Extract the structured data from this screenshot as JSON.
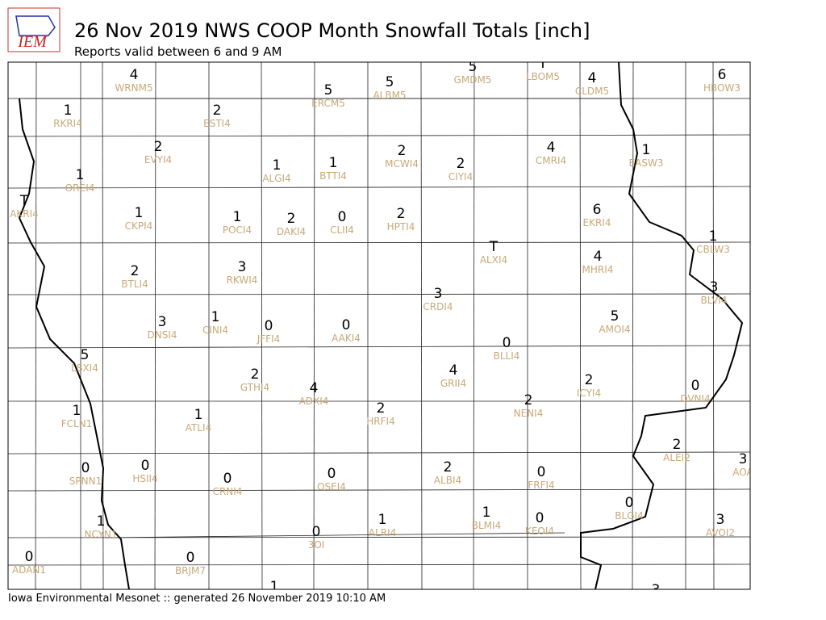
{
  "header": {
    "logo_text": "IEM",
    "title": "26 Nov 2019 NWS COOP Month Snowfall Totals [inch]",
    "subtitle": "Reports valid between 6 and 9 AM"
  },
  "footer": "Iowa Environmental Mesonet :: generated 26 November 2019 10:10 AM",
  "stations": [
    {
      "value": 4,
      "id": "WRNM5"
    },
    {
      "value": 5,
      "id": "ERCM5"
    },
    {
      "value": 5,
      "id": "ALBM5"
    },
    {
      "value": 5,
      "id": "GMDM5"
    },
    {
      "value": "T",
      "id": "LBOM5"
    },
    {
      "value": 4,
      "id": "CLDM5"
    },
    {
      "value": 6,
      "id": "HBOW3"
    },
    {
      "value": 1,
      "id": "RKRI4"
    },
    {
      "value": 2,
      "id": "ESTI4"
    },
    {
      "value": 2,
      "id": "EVYI4"
    },
    {
      "value": 1,
      "id": "ALGI4"
    },
    {
      "value": 1,
      "id": "BTTI4"
    },
    {
      "value": 2,
      "id": "MCWI4"
    },
    {
      "value": 2,
      "id": "CIYI4"
    },
    {
      "value": 4,
      "id": "CMRI4"
    },
    {
      "value": 1,
      "id": "EASW3"
    },
    {
      "value": 1,
      "id": "ORCI4"
    },
    {
      "value": "T",
      "id": "AKRI4"
    },
    {
      "value": 1,
      "id": "CKPI4"
    },
    {
      "value": 1,
      "id": "POCI4"
    },
    {
      "value": 2,
      "id": "DAKI4"
    },
    {
      "value": 0,
      "id": "CLII4"
    },
    {
      "value": 2,
      "id": "HPTI4"
    },
    {
      "value": 6,
      "id": "EKRI4"
    },
    {
      "value": 1,
      "id": "CBLW3"
    },
    {
      "value": "T",
      "id": "ALXI4"
    },
    {
      "value": 4,
      "id": "MHRI4"
    },
    {
      "value": 2,
      "id": "BTLI4"
    },
    {
      "value": 3,
      "id": "RKWI4"
    },
    {
      "value": 3,
      "id": "BLVI4"
    },
    {
      "value": 3,
      "id": "CRDI4"
    },
    {
      "value": 5,
      "id": "AMOI4"
    },
    {
      "value": 3,
      "id": "DNSI4"
    },
    {
      "value": 1,
      "id": "CINI4"
    },
    {
      "value": 0,
      "id": "JFFI4"
    },
    {
      "value": 0,
      "id": "AAKI4"
    },
    {
      "value": 0,
      "id": "BLLI4"
    },
    {
      "value": 0,
      "id": "DVNI4"
    },
    {
      "value": 5,
      "id": "LSXI4"
    },
    {
      "value": 4,
      "id": "GRII4"
    },
    {
      "value": 2,
      "id": "GTHI4"
    },
    {
      "value": 4,
      "id": "ADXI4"
    },
    {
      "value": 2,
      "id": "ICYI4"
    },
    {
      "value": 2,
      "id": "NENI4"
    },
    {
      "value": 2,
      "id": "HRFI4"
    },
    {
      "value": 1,
      "id": "FCLN1"
    },
    {
      "value": 1,
      "id": "ATLI4"
    },
    {
      "value": 2,
      "id": "ALEI2"
    },
    {
      "value": 3,
      "id": "AOA"
    },
    {
      "value": 0,
      "id": "SPNN1"
    },
    {
      "value": 0,
      "id": "HSII4"
    },
    {
      "value": 0,
      "id": "CRNI4"
    },
    {
      "value": 0,
      "id": "OSEI4"
    },
    {
      "value": 2,
      "id": "ALBI4"
    },
    {
      "value": 0,
      "id": "FRFI4"
    },
    {
      "value": 0,
      "id": "BLGI4"
    },
    {
      "value": 1,
      "id": "NCYN1"
    },
    {
      "value": 1,
      "id": "ALRI4"
    },
    {
      "value": 1,
      "id": "BLMI4"
    },
    {
      "value": 0,
      "id": "KEOI4"
    },
    {
      "value": 3,
      "id": "AVOI2"
    },
    {
      "value": 0,
      "id": "3OI"
    },
    {
      "value": 0,
      "id": "ADAN1"
    },
    {
      "value": 0,
      "id": "BRJM7"
    },
    {
      "value": 1
    },
    {
      "value": 3
    }
  ]
}
